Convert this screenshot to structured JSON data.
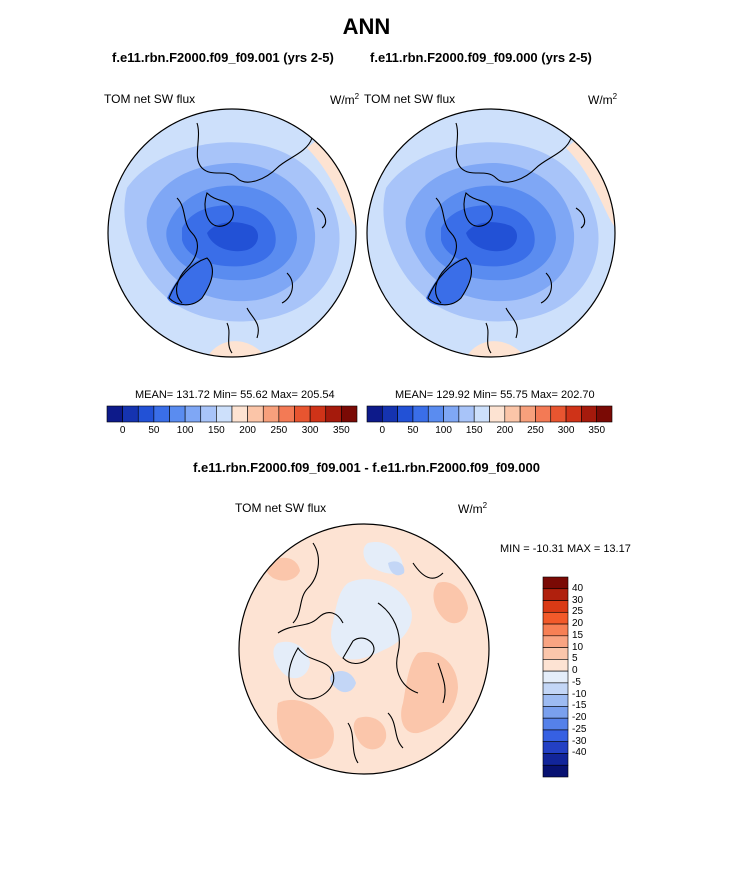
{
  "title": "ANN",
  "panels": [
    {
      "case": "f.e11.rbn.F2000.f09_f09.001 (yrs 2-5)",
      "variable": "TOM net SW flux",
      "units": "W/m",
      "units_exp": "2",
      "stats": "MEAN= 131.72  Min=  55.62  Max= 205.54"
    },
    {
      "case": "f.e11.rbn.F2000.f09_f09.000 (yrs 2-5)",
      "variable": "TOM net SW flux",
      "units": "W/m",
      "units_exp": "2",
      "stats": "MEAN= 129.92  Min=  55.75  Max= 202.70"
    }
  ],
  "diff": {
    "title": "f.e11.rbn.F2000.f09_f09.001 - f.e11.rbn.F2000.f09_f09.000",
    "variable": "TOM net SW flux",
    "units": "W/m",
    "units_exp": "2",
    "stats": "MIN = -10.31 MAX =  13.17"
  },
  "colorbar_top": {
    "colors": [
      "#0d1a8a",
      "#1533b0",
      "#2251d6",
      "#3a6ee8",
      "#5a8cf0",
      "#7fa7f5",
      "#a8c4f9",
      "#cde0fb",
      "#fde3d2",
      "#fbc5a8",
      "#f7a07c",
      "#f37a55",
      "#e85530",
      "#cf3318",
      "#a51a0c",
      "#7a0a05"
    ],
    "ticks": [
      "0",
      "50",
      "100",
      "150",
      "200",
      "250",
      "300",
      "350"
    ]
  },
  "colorbar_diff": {
    "colors": [
      "#7a0a05",
      "#b0200d",
      "#da3a15",
      "#f25a2a",
      "#f78055",
      "#f9a482",
      "#fbc6ab",
      "#fde3d3",
      "#e4edf9",
      "#c3d6f6",
      "#9dbbf2",
      "#7aa0ee",
      "#5581ea",
      "#3660e2",
      "#2340c4",
      "#12259a",
      "#081272"
    ],
    "ticks": [
      "40",
      "30",
      "25",
      "20",
      "15",
      "10",
      "5",
      "0",
      "-5",
      "-10",
      "-15",
      "-20",
      "-25",
      "-30",
      "-40"
    ]
  }
}
